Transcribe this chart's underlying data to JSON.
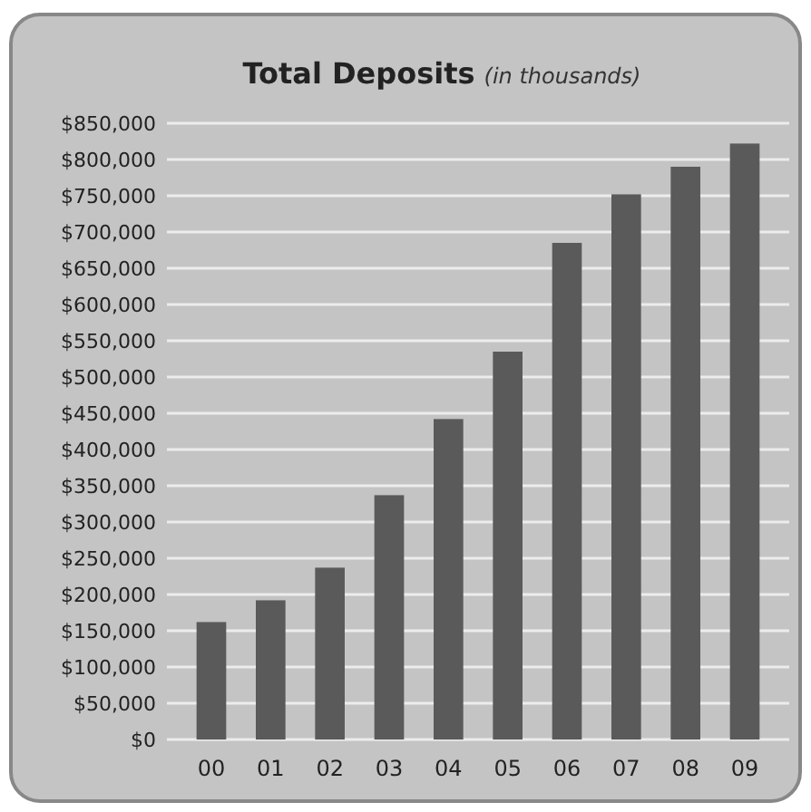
{
  "chart_data": {
    "type": "bar",
    "title": "Total Deposits",
    "subtitle": "(in thousands)",
    "categories": [
      "00",
      "01",
      "02",
      "03",
      "04",
      "05",
      "06",
      "07",
      "08",
      "09"
    ],
    "values": [
      162000,
      192000,
      237000,
      337000,
      442000,
      535000,
      685000,
      752000,
      790000,
      822000
    ],
    "color": "#5a5a5a",
    "ylim": [
      0,
      850000
    ],
    "yticks": [
      {
        "value": 0,
        "label": "$0"
      },
      {
        "value": 50000,
        "label": "$50,000"
      },
      {
        "value": 100000,
        "label": "$100,000"
      },
      {
        "value": 150000,
        "label": "$150,000"
      },
      {
        "value": 200000,
        "label": "$200,000"
      },
      {
        "value": 250000,
        "label": "$250,000"
      },
      {
        "value": 300000,
        "label": "$300,000"
      },
      {
        "value": 350000,
        "label": "$350,000"
      },
      {
        "value": 400000,
        "label": "$400,000"
      },
      {
        "value": 450000,
        "label": "$450,000"
      },
      {
        "value": 500000,
        "label": "$500,000"
      },
      {
        "value": 550000,
        "label": "$550,000"
      },
      {
        "value": 600000,
        "label": "$600,000"
      },
      {
        "value": 650000,
        "label": "$650,000"
      },
      {
        "value": 700000,
        "label": "$700,000"
      },
      {
        "value": 750000,
        "label": "$750,000"
      },
      {
        "value": 800000,
        "label": "$800,000"
      },
      {
        "value": 850000,
        "label": "$850,000"
      }
    ],
    "grid": "y"
  }
}
